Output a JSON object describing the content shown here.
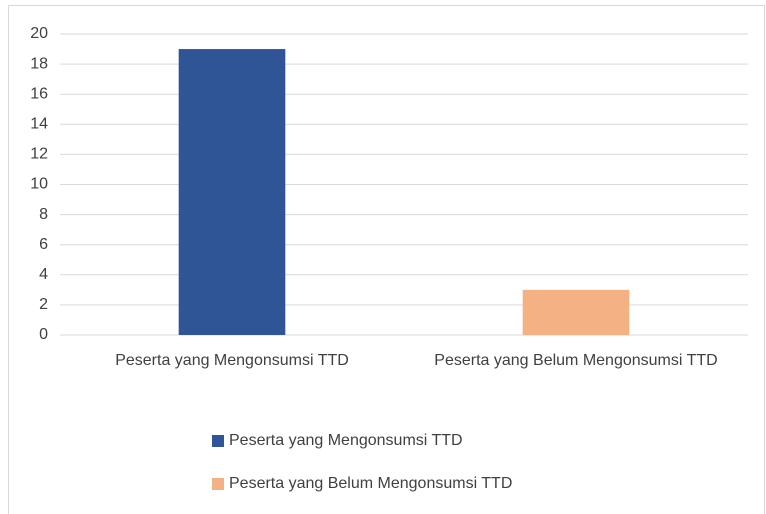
{
  "chart_data": {
    "type": "bar",
    "categories": [
      "Peserta yang Mengonsumsi TTD",
      "Peserta yang Belum Mengonsumsi TTD"
    ],
    "values": [
      19,
      3
    ],
    "colors": [
      "#2f5597",
      "#f4b183"
    ],
    "ylim": [
      0,
      20
    ],
    "yticks": [
      0,
      2,
      4,
      6,
      8,
      10,
      12,
      14,
      16,
      18,
      20
    ],
    "grid": true,
    "legend": "bottom"
  }
}
